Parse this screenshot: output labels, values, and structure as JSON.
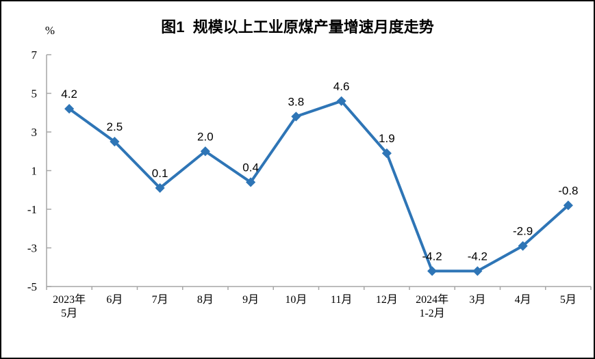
{
  "chart_data": {
    "type": "line",
    "title": "图1  规模以上工业原煤产量增速月度走势",
    "ylabel": "%",
    "xlabel": "",
    "categories": [
      [
        "2023年",
        "5月"
      ],
      [
        "6月"
      ],
      [
        "7月"
      ],
      [
        "8月"
      ],
      [
        "9月"
      ],
      [
        "10月"
      ],
      [
        "11月"
      ],
      [
        "12月"
      ],
      [
        "2024年",
        "1-2月"
      ],
      [
        "3月"
      ],
      [
        "4月"
      ],
      [
        "5月"
      ]
    ],
    "values": [
      4.2,
      2.5,
      0.1,
      2.0,
      0.4,
      3.8,
      4.6,
      1.9,
      -4.2,
      -4.2,
      -2.9,
      -0.8
    ],
    "data_labels": [
      "4.2",
      "2.5",
      "0.1",
      "2.0",
      "0.4",
      "3.8",
      "4.6",
      "1.9",
      "-4.2",
      "-4.2",
      "-2.9",
      "-0.8"
    ],
    "yticks": [
      7,
      5,
      3,
      1,
      -1,
      -3,
      -5
    ],
    "ylim": [
      -5,
      7
    ],
    "grid": false,
    "legend": "none",
    "marker": "diamond",
    "colors": {
      "line": "#2E75B6",
      "marker": "#2E75B6",
      "axis": "#A6A6A6",
      "text": "#000000"
    }
  }
}
